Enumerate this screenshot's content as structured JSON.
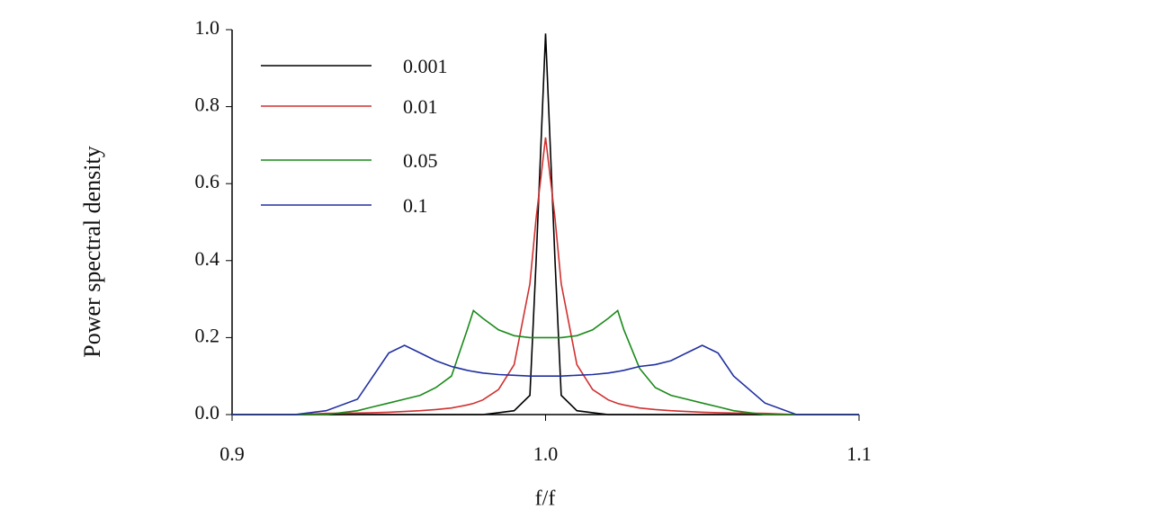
{
  "chart_data": {
    "type": "line",
    "y_label": "Power spectral density",
    "x_label": "f/f",
    "x": [
      0.9,
      0.92,
      0.93,
      0.94,
      0.945,
      0.95,
      0.955,
      0.96,
      0.965,
      0.97,
      0.975,
      0.977,
      0.98,
      0.985,
      0.99,
      0.995,
      0.997,
      1.0,
      1.003,
      1.005,
      1.01,
      1.015,
      1.02,
      1.023,
      1.025,
      1.03,
      1.035,
      1.04,
      1.045,
      1.05,
      1.055,
      1.06,
      1.07,
      1.08,
      1.1
    ],
    "series": [
      {
        "name": "0.001",
        "color": "#000000",
        "values": [
          0,
          0,
          0,
          0,
          0,
          0,
          0,
          0,
          0,
          0,
          0,
          0,
          0,
          0.005,
          0.01,
          0.05,
          0.4,
          0.99,
          0.4,
          0.05,
          0.01,
          0.005,
          0,
          0,
          0,
          0,
          0,
          0,
          0,
          0,
          0,
          0,
          0,
          0,
          0
        ]
      },
      {
        "name": "0.01",
        "color": "#d03030",
        "values": [
          0,
          0,
          0.003,
          0.004,
          0.005,
          0.006,
          0.008,
          0.01,
          0.013,
          0.017,
          0.025,
          0.029,
          0.038,
          0.065,
          0.13,
          0.34,
          0.51,
          0.72,
          0.51,
          0.34,
          0.13,
          0.065,
          0.038,
          0.029,
          0.025,
          0.017,
          0.013,
          0.01,
          0.008,
          0.006,
          0.005,
          0.004,
          0.003,
          0,
          0
        ]
      },
      {
        "name": "0.05",
        "color": "#1a8a1a",
        "values": [
          0,
          0,
          0,
          0.01,
          0.02,
          0.03,
          0.04,
          0.05,
          0.07,
          0.1,
          0.22,
          0.27,
          0.25,
          0.22,
          0.205,
          0.2,
          0.2,
          0.2,
          0.2,
          0.2,
          0.205,
          0.22,
          0.25,
          0.27,
          0.22,
          0.12,
          0.07,
          0.05,
          0.04,
          0.03,
          0.02,
          0.01,
          0,
          0,
          0
        ]
      },
      {
        "name": "0.1",
        "color": "#2030a0",
        "values": [
          0,
          0,
          0.01,
          0.04,
          0.1,
          0.16,
          0.18,
          0.16,
          0.14,
          0.125,
          0.115,
          0.112,
          0.108,
          0.104,
          0.102,
          0.1,
          0.1,
          0.1,
          0.1,
          0.1,
          0.102,
          0.104,
          0.108,
          0.112,
          0.115,
          0.125,
          0.13,
          0.14,
          0.16,
          0.18,
          0.16,
          0.1,
          0.03,
          0,
          0
        ]
      }
    ],
    "xlim": [
      0.9,
      1.1
    ],
    "xticks": [
      0.9,
      {
        "value": 1,
        "label": "1.0"
      },
      1.1
    ],
    "ylim": [
      0,
      1
    ],
    "yticks": [
      {
        "value": 0,
        "label": "0.0"
      },
      0.2,
      0.4,
      0.6,
      0.8,
      {
        "value": 1,
        "label": "1.0"
      }
    ],
    "legend": "upper left"
  }
}
